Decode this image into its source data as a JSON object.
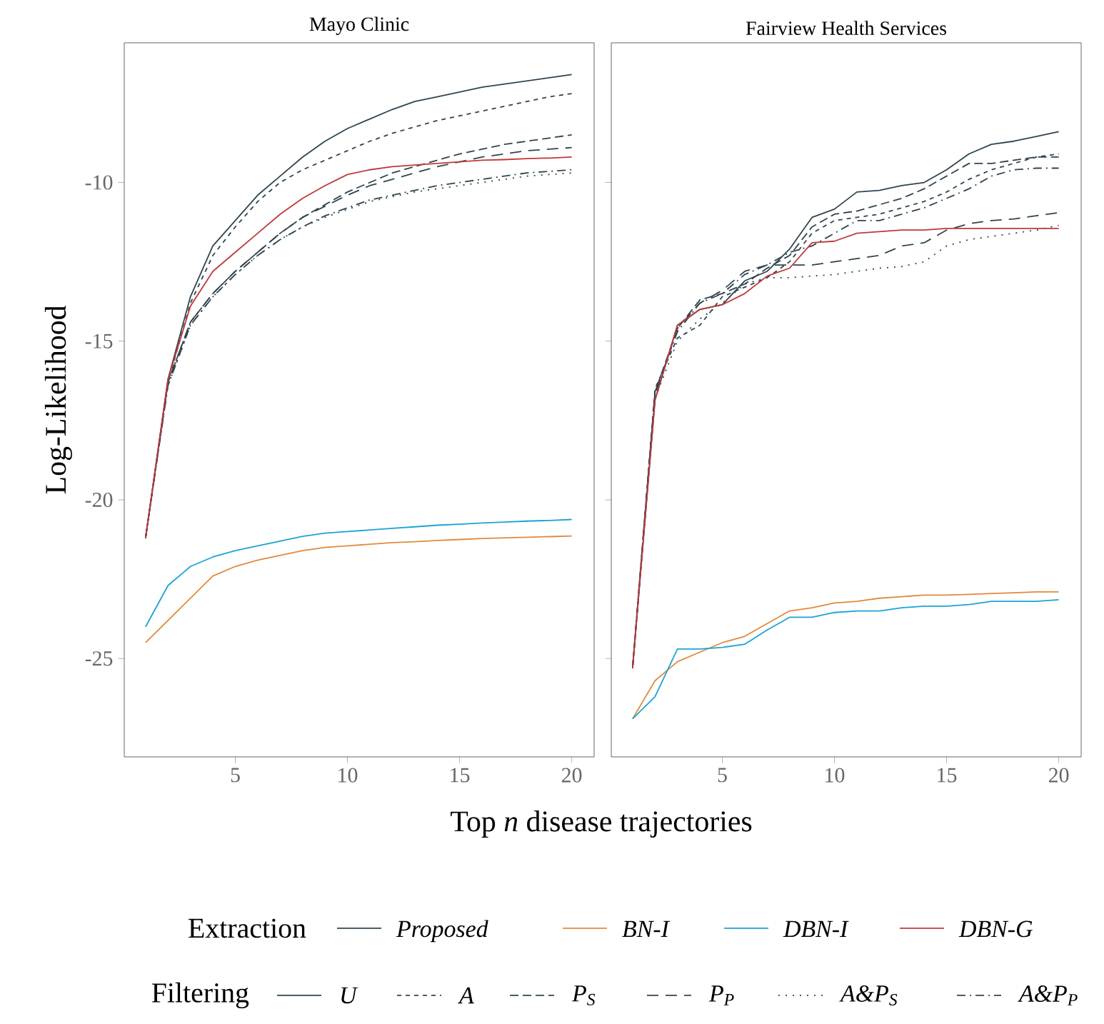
{
  "chart_data": [
    {
      "type": "line",
      "title": "Mayo Clinic",
      "xlabel": "Top *n* disease trajectories",
      "ylabel": "Log-Likelihood",
      "legend": "bottom",
      "legend_title": "Extraction",
      "annotations": [
        "Filtering",
        "U",
        "A",
        "P$_{S}$",
        "P$_{P}$",
        "A&P$_{S}$",
        "A&P$_{P}$"
      ],
      "x": [
        1,
        2,
        3,
        4,
        5,
        6,
        7,
        8,
        9,
        10,
        11,
        12,
        13,
        14,
        15,
        16,
        17,
        18,
        19,
        20
      ],
      "xlim": [
        0.05,
        21.0
      ],
      "xticks": [
        5,
        10,
        15,
        20
      ],
      "ylim": [
        -28.1,
        -5.6
      ],
      "yticks": [
        -25,
        -20,
        -15,
        -10
      ],
      "series": [
        {
          "name": "Proposed",
          "color": "#2f4550",
          "line_style": "solid",
          "values": [
            -21.2,
            -16.2,
            -13.6,
            -12.0,
            -11.2,
            -10.4,
            -9.8,
            -9.2,
            -8.7,
            -8.3,
            -8.0,
            -7.7,
            -7.45,
            -7.3,
            -7.15,
            -7.0,
            -6.9,
            -6.8,
            -6.7,
            -6.6
          ]
        },
        {
          "color": "#2f4550",
          "line_style": "dashed",
          "values": [
            -21.2,
            -16.3,
            -13.8,
            -12.3,
            -11.4,
            -10.6,
            -10.0,
            -9.6,
            -9.3,
            -9.0,
            -8.7,
            -8.45,
            -8.25,
            -8.05,
            -7.9,
            -7.75,
            -7.6,
            -7.45,
            -7.3,
            -7.2
          ]
        },
        {
          "color": "#2f4550",
          "line_style": "long dashed",
          "values": [
            -21.2,
            -16.3,
            -14.4,
            -13.5,
            -12.8,
            -12.2,
            -11.6,
            -11.1,
            -10.7,
            -10.3,
            -10.0,
            -9.7,
            -9.5,
            -9.3,
            -9.1,
            -8.95,
            -8.8,
            -8.7,
            -8.6,
            -8.5
          ]
        },
        {
          "color": "#2f4550",
          "line_style": "loosely dashed",
          "values": [
            -21.2,
            -16.3,
            -14.4,
            -13.5,
            -12.8,
            -12.2,
            -11.6,
            -11.1,
            -10.75,
            -10.4,
            -10.1,
            -9.9,
            -9.7,
            -9.5,
            -9.35,
            -9.2,
            -9.1,
            -9.0,
            -8.95,
            -8.9
          ]
        },
        {
          "color": "#2f4550",
          "line_style": "dotted",
          "values": [
            -21.2,
            -16.4,
            -14.5,
            -13.6,
            -12.9,
            -12.3,
            -11.8,
            -11.4,
            -11.1,
            -10.85,
            -10.6,
            -10.45,
            -10.3,
            -10.2,
            -10.1,
            -10.0,
            -9.9,
            -9.8,
            -9.75,
            -9.7
          ]
        },
        {
          "color": "#2f4550",
          "line_style": "dash dot",
          "values": [
            -21.2,
            -16.4,
            -14.5,
            -13.6,
            -12.9,
            -12.3,
            -11.8,
            -11.4,
            -11.05,
            -10.8,
            -10.55,
            -10.4,
            -10.25,
            -10.1,
            -10.0,
            -9.9,
            -9.8,
            -9.7,
            -9.65,
            -9.6
          ]
        },
        {
          "name": "BN-I",
          "color": "#e08a3c",
          "line_style": "solid",
          "values": [
            -24.5,
            -23.8,
            -23.1,
            -22.4,
            -22.1,
            -21.9,
            -21.75,
            -21.6,
            -21.5,
            -21.45,
            -21.4,
            -21.35,
            -21.32,
            -21.28,
            -21.25,
            -21.22,
            -21.2,
            -21.18,
            -21.16,
            -21.14
          ]
        },
        {
          "name": "DBN-I",
          "color": "#1aa3d6",
          "line_style": "solid",
          "values": [
            -24.0,
            -22.7,
            -22.1,
            -21.8,
            -21.6,
            -21.45,
            -21.3,
            -21.15,
            -21.05,
            -21.0,
            -20.95,
            -20.9,
            -20.85,
            -20.8,
            -20.77,
            -20.73,
            -20.7,
            -20.67,
            -20.65,
            -20.62
          ]
        },
        {
          "name": "DBN-G",
          "color": "#c0393b",
          "line_style": "solid",
          "values": [
            -21.2,
            -16.2,
            -13.9,
            -12.8,
            -12.2,
            -11.6,
            -11.0,
            -10.5,
            -10.1,
            -9.75,
            -9.6,
            -9.5,
            -9.45,
            -9.4,
            -9.35,
            -9.3,
            -9.28,
            -9.25,
            -9.23,
            -9.2
          ]
        }
      ]
    },
    {
      "type": "line",
      "title": "Fairview Health Services",
      "tick_labels": "x",
      "x": [
        1,
        2,
        3,
        4,
        5,
        6,
        7,
        8,
        9,
        10,
        11,
        12,
        13,
        14,
        15,
        16,
        17,
        18,
        19,
        20
      ],
      "xlim": [
        0.05,
        21.0
      ],
      "xticks": [
        5,
        10,
        15,
        20
      ],
      "ylim": [
        -28.1,
        -5.6
      ],
      "yticks": [
        -25,
        -20,
        -15,
        -10
      ],
      "series": [
        {
          "color": "#2f4550",
          "line_style": "solid",
          "values": [
            -25.3,
            -16.85,
            -14.5,
            -14.0,
            -13.85,
            -13.1,
            -12.8,
            -12.1,
            -11.1,
            -10.84,
            -10.3,
            -10.25,
            -10.1,
            -10.0,
            -9.6,
            -9.1,
            -8.8,
            -8.7,
            -8.55,
            -8.4
          ]
        },
        {
          "color": "#2f4550",
          "line_style": "dashed",
          "values": [
            -25.3,
            -16.5,
            -14.9,
            -14.5,
            -13.6,
            -13.3,
            -13.0,
            -12.5,
            -11.6,
            -11.2,
            -11.1,
            -11.0,
            -10.8,
            -10.6,
            -10.3,
            -9.9,
            -9.6,
            -9.4,
            -9.2,
            -9.1
          ]
        },
        {
          "color": "#2f4550",
          "line_style": "long dashed",
          "values": [
            -25.3,
            -16.6,
            -14.6,
            -13.7,
            -13.5,
            -13.2,
            -12.7,
            -12.3,
            -11.4,
            -11.0,
            -10.9,
            -10.7,
            -10.5,
            -10.2,
            -9.8,
            -9.4,
            -9.4,
            -9.3,
            -9.2,
            -9.2
          ]
        },
        {
          "color": "#2f4550",
          "line_style": "loosely dashed",
          "values": [
            -25.3,
            -16.7,
            -14.6,
            -13.8,
            -13.4,
            -12.8,
            -12.6,
            -12.6,
            -12.6,
            -12.5,
            -12.4,
            -12.3,
            -12.0,
            -11.9,
            -11.5,
            -11.3,
            -11.2,
            -11.15,
            -11.05,
            -10.95
          ]
        },
        {
          "color": "#2f4550",
          "line_style": "dotted",
          "values": [
            -25.3,
            -16.8,
            -15.0,
            -14.3,
            -13.8,
            -13.2,
            -13.0,
            -13.0,
            -12.95,
            -12.9,
            -12.8,
            -12.7,
            -12.65,
            -12.5,
            -12.0,
            -11.8,
            -11.7,
            -11.6,
            -11.5,
            -11.35
          ]
        },
        {
          "color": "#2f4550",
          "line_style": "dash dot",
          "values": [
            -25.3,
            -16.6,
            -14.7,
            -13.8,
            -13.5,
            -12.9,
            -12.6,
            -12.2,
            -12.0,
            -11.6,
            -11.2,
            -11.2,
            -11.0,
            -10.8,
            -10.5,
            -10.2,
            -9.8,
            -9.6,
            -9.55,
            -9.55
          ]
        },
        {
          "color": "#e08a3c",
          "line_style": "solid",
          "values": [
            -26.9,
            -25.7,
            -25.1,
            -24.8,
            -24.5,
            -24.3,
            -23.9,
            -23.5,
            -23.4,
            -23.25,
            -23.2,
            -23.1,
            -23.05,
            -23.0,
            -23.0,
            -22.98,
            -22.95,
            -22.93,
            -22.9,
            -22.9
          ]
        },
        {
          "color": "#1aa3d6",
          "line_style": "solid",
          "values": [
            -26.9,
            -26.2,
            -24.7,
            -24.7,
            -24.65,
            -24.55,
            -24.1,
            -23.7,
            -23.7,
            -23.55,
            -23.5,
            -23.5,
            -23.4,
            -23.35,
            -23.35,
            -23.3,
            -23.2,
            -23.2,
            -23.2,
            -23.15
          ]
        },
        {
          "color": "#c0393b",
          "line_style": "solid",
          "values": [
            -25.3,
            -16.85,
            -14.5,
            -14.0,
            -13.85,
            -13.5,
            -12.95,
            -12.7,
            -11.9,
            -11.85,
            -11.6,
            -11.55,
            -11.5,
            -11.5,
            -11.45,
            -11.45,
            -11.45,
            -11.45,
            -11.45,
            -11.45
          ]
        }
      ]
    }
  ]
}
